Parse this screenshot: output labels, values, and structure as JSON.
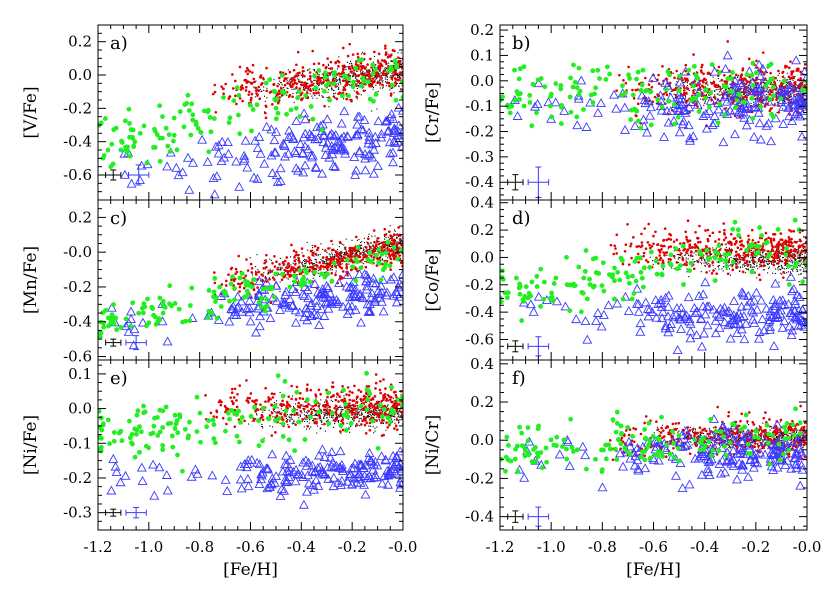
{
  "chart_data": [
    {
      "id": "a",
      "type": "scatter",
      "panel_label": "a)",
      "ylabel": "[V/Fe]",
      "xlabel": "",
      "xlim": [
        -1.2,
        0.0
      ],
      "ylim": [
        -0.75,
        0.3
      ],
      "yticks": [
        {
          "v": 0.2,
          "t": "0.2"
        },
        {
          "v": 0.0,
          "t": "0.0"
        },
        {
          "v": -0.2,
          "t": "-0.2"
        },
        {
          "v": -0.4,
          "t": "-0.4"
        },
        {
          "v": -0.6,
          "t": "-0.6"
        }
      ],
      "trends": {
        "black": {
          "y0": -0.2,
          "y1": 0.02,
          "sd": 0.05
        },
        "red": {
          "y0": -0.22,
          "y1": 0.04,
          "sd": 0.06
        },
        "green": {
          "y0": -0.42,
          "y1": 0.03,
          "sd": 0.09
        },
        "blue": {
          "y0": -0.58,
          "y1": -0.36,
          "sd": 0.09
        }
      },
      "errbars": [
        {
          "x": -1.14,
          "y": -0.6,
          "dx": 0.03,
          "dy": 0.03,
          "color": "#000000"
        },
        {
          "x": -1.04,
          "y": -0.6,
          "dx": 0.04,
          "dy": 0.06,
          "color": "#3a3aff"
        }
      ]
    },
    {
      "id": "b",
      "type": "scatter",
      "panel_label": "b)",
      "ylabel": "[Cr/Fe]",
      "xlabel": "",
      "xlim": [
        -1.2,
        0.0
      ],
      "ylim": [
        -0.47,
        0.22
      ],
      "yticks": [
        {
          "v": 0.2,
          "t": "0.2"
        },
        {
          "v": 0.1,
          "t": "0.1"
        },
        {
          "v": 0.0,
          "t": "0.0"
        },
        {
          "v": -0.1,
          "t": "-0.1"
        },
        {
          "v": -0.2,
          "t": "-0.2"
        },
        {
          "v": -0.3,
          "t": "-0.3"
        },
        {
          "v": -0.4,
          "t": "-0.4"
        }
      ],
      "trends": {
        "black": {
          "y0": -0.04,
          "y1": -0.04,
          "sd": 0.03
        },
        "red": {
          "y0": -0.04,
          "y1": -0.03,
          "sd": 0.05
        },
        "green": {
          "y0": -0.07,
          "y1": -0.02,
          "sd": 0.06
        },
        "blue": {
          "y0": -0.1,
          "y1": -0.09,
          "sd": 0.07
        }
      },
      "errbars": [
        {
          "x": -1.14,
          "y": -0.4,
          "dx": 0.03,
          "dy": 0.03,
          "color": "#000000"
        },
        {
          "x": -1.05,
          "y": -0.4,
          "dx": 0.04,
          "dy": 0.06,
          "color": "#3a3aff"
        }
      ]
    },
    {
      "id": "c",
      "type": "scatter",
      "panel_label": "c)",
      "ylabel": "[Mn/Fe]",
      "xlabel": "",
      "xlim": [
        -1.2,
        0.0
      ],
      "ylim": [
        -0.62,
        0.3
      ],
      "yticks": [
        {
          "v": 0.2,
          "t": "0.2"
        },
        {
          "v": 0.0,
          "t": "-0.0"
        },
        {
          "v": -0.2,
          "t": "-0.2"
        },
        {
          "v": -0.4,
          "t": "-0.4"
        },
        {
          "v": -0.6,
          "t": "-0.6"
        }
      ],
      "trends": {
        "black": {
          "y0": -0.32,
          "y1": 0.05,
          "sd": 0.04
        },
        "red": {
          "y0": -0.33,
          "y1": 0.03,
          "sd": 0.05
        },
        "green": {
          "y0": -0.42,
          "y1": -0.02,
          "sd": 0.05
        },
        "blue": {
          "y0": -0.4,
          "y1": -0.22,
          "sd": 0.06
        }
      },
      "errbars": [
        {
          "x": -1.14,
          "y": -0.52,
          "dx": 0.03,
          "dy": 0.02,
          "color": "#000000"
        },
        {
          "x": -1.05,
          "y": -0.52,
          "dx": 0.04,
          "dy": 0.04,
          "color": "#3a3aff"
        }
      ]
    },
    {
      "id": "d",
      "type": "scatter",
      "panel_label": "d)",
      "ylabel": "[Co/Fe]",
      "xlabel": "",
      "xlim": [
        -1.2,
        0.0
      ],
      "ylim": [
        -0.75,
        0.42
      ],
      "yticks": [
        {
          "v": 0.4,
          "t": "0.4"
        },
        {
          "v": 0.2,
          "t": "0.2"
        },
        {
          "v": 0.0,
          "t": "0.0"
        },
        {
          "v": -0.2,
          "t": "-0.2"
        },
        {
          "v": -0.4,
          "t": "-0.4"
        },
        {
          "v": -0.6,
          "t": "-0.6"
        }
      ],
      "trends": {
        "black": {
          "y0": -0.03,
          "y1": -0.01,
          "sd": 0.05
        },
        "red": {
          "y0": 0.08,
          "y1": 0.05,
          "sd": 0.07
        },
        "green": {
          "y0": -0.25,
          "y1": 0.1,
          "sd": 0.1
        },
        "blue": {
          "y0": -0.4,
          "y1": -0.42,
          "sd": 0.09
        }
      },
      "errbars": [
        {
          "x": -1.14,
          "y": -0.65,
          "dx": 0.03,
          "dy": 0.04,
          "color": "#000000"
        },
        {
          "x": -1.05,
          "y": -0.65,
          "dx": 0.04,
          "dy": 0.07,
          "color": "#3a3aff"
        }
      ]
    },
    {
      "id": "e",
      "type": "scatter",
      "panel_label": "e)",
      "ylabel": "[Ni/Fe]",
      "xlabel": "[Fe/H]",
      "xlim": [
        -1.2,
        0.0
      ],
      "ylim": [
        -0.35,
        0.14
      ],
      "yticks": [
        {
          "v": 0.1,
          "t": "0.1"
        },
        {
          "v": 0.0,
          "t": "0.0"
        },
        {
          "v": -0.1,
          "t": "-0.1"
        },
        {
          "v": -0.2,
          "t": "-0.2"
        },
        {
          "v": -0.3,
          "t": "-0.3"
        }
      ],
      "xticks": [
        {
          "v": -1.2,
          "t": "-1.2"
        },
        {
          "v": -1.0,
          "t": "-1.0"
        },
        {
          "v": -0.8,
          "t": "-0.8"
        },
        {
          "v": -0.6,
          "t": "-0.6"
        },
        {
          "v": -0.4,
          "t": "-0.4"
        },
        {
          "v": -0.2,
          "t": "-0.2"
        },
        {
          "v": 0.0,
          "t": "-0.0"
        }
      ],
      "trends": {
        "black": {
          "y0": -0.03,
          "y1": -0.01,
          "sd": 0.02
        },
        "red": {
          "y0": 0.0,
          "y1": 0.01,
          "sd": 0.03
        },
        "green": {
          "y0": -0.08,
          "y1": 0.01,
          "sd": 0.04
        },
        "blue": {
          "y0": -0.2,
          "y1": -0.18,
          "sd": 0.03
        }
      },
      "errbars": [
        {
          "x": -1.14,
          "y": -0.3,
          "dx": 0.03,
          "dy": 0.01,
          "color": "#000000"
        },
        {
          "x": -1.05,
          "y": -0.3,
          "dx": 0.04,
          "dy": 0.015,
          "color": "#3a3aff"
        }
      ]
    },
    {
      "id": "f",
      "type": "scatter",
      "panel_label": "f)",
      "ylabel": "[Ni/Cr]",
      "xlabel": "[Fe/H]",
      "xlim": [
        -1.2,
        0.0
      ],
      "ylim": [
        -0.47,
        0.42
      ],
      "yticks": [
        {
          "v": 0.4,
          "t": "0.4"
        },
        {
          "v": 0.2,
          "t": "0.2"
        },
        {
          "v": 0.0,
          "t": "0.0"
        },
        {
          "v": -0.2,
          "t": "-0.2"
        },
        {
          "v": -0.4,
          "t": "-0.4"
        }
      ],
      "xticks": [
        {
          "v": -1.2,
          "t": "-1.2"
        },
        {
          "v": -1.0,
          "t": "-1.0"
        },
        {
          "v": -0.8,
          "t": "-0.8"
        },
        {
          "v": -0.6,
          "t": "-0.6"
        },
        {
          "v": -0.4,
          "t": "-0.4"
        },
        {
          "v": -0.2,
          "t": "-0.2"
        },
        {
          "v": 0.0,
          "t": "-0.0"
        }
      ],
      "trends": {
        "black": {
          "y0": 0.0,
          "y1": 0.02,
          "sd": 0.03
        },
        "red": {
          "y0": 0.0,
          "y1": 0.02,
          "sd": 0.05
        },
        "green": {
          "y0": -0.05,
          "y1": 0.0,
          "sd": 0.06
        },
        "blue": {
          "y0": -0.08,
          "y1": -0.07,
          "sd": 0.07
        }
      },
      "errbars": [
        {
          "x": -1.14,
          "y": -0.4,
          "dx": 0.03,
          "dy": 0.03,
          "color": "#000000"
        },
        {
          "x": -1.05,
          "y": -0.4,
          "dx": 0.04,
          "dy": 0.05,
          "color": "#3a3aff"
        }
      ]
    }
  ],
  "colors": {
    "black_points": "#000000",
    "red_points": "#e00000",
    "green_points": "#22ee22",
    "blue_triangles": "#3a3aff"
  }
}
